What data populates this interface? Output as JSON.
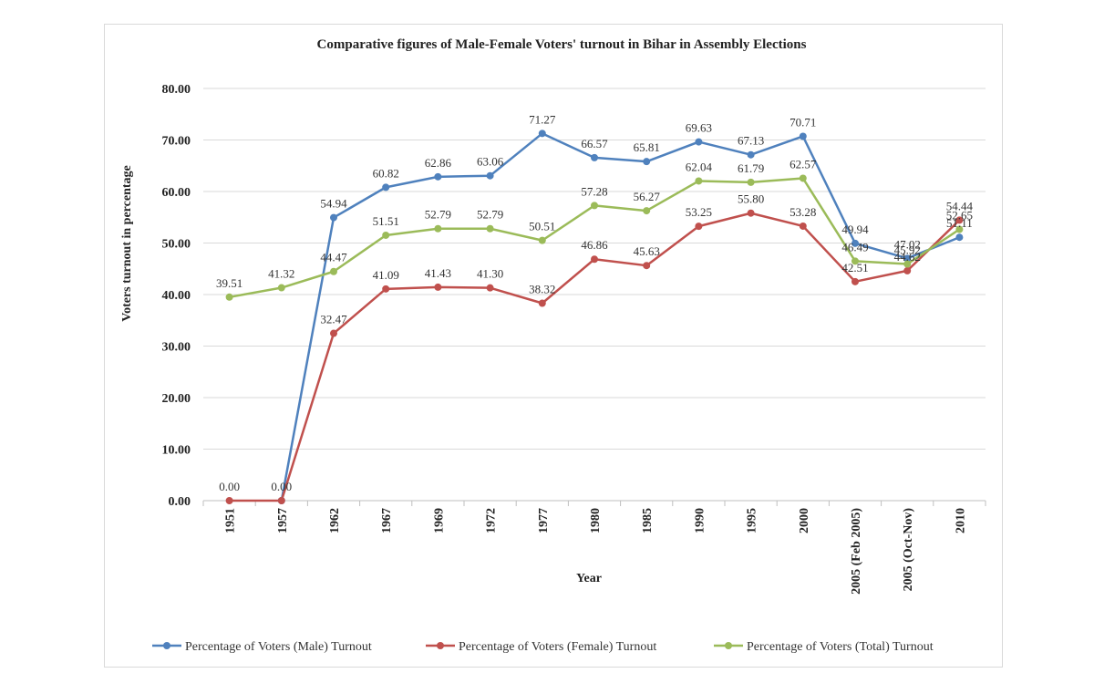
{
  "chart_data": {
    "type": "line",
    "title": "Comparative figures of Male-Female Voters' turnout in Bihar in Assembly Elections",
    "xlabel": "Year",
    "ylabel": "Voters turnout  in percentage",
    "ylim": [
      0,
      80
    ],
    "yticks": [
      "0.00",
      "10.00",
      "20.00",
      "30.00",
      "40.00",
      "50.00",
      "60.00",
      "70.00",
      "80.00"
    ],
    "grid": true,
    "legend_position": "bottom",
    "categories": [
      "1951",
      "1957",
      "1962",
      "1967",
      "1969",
      "1972",
      "1977",
      "1980",
      "1985",
      "1990",
      "1995",
      "2000",
      "2005 (Feb 2005)",
      "2005 (Oct-Nov)",
      "2010"
    ],
    "series": [
      {
        "name": "Percentage of Voters (Male) Turnout",
        "color": "#4f81bd",
        "values": [
          null,
          0.0,
          54.94,
          60.82,
          62.86,
          63.06,
          71.27,
          66.57,
          65.81,
          69.63,
          67.13,
          70.71,
          49.94,
          47.02,
          51.11
        ],
        "labels": [
          "",
          "",
          "54.94",
          "60.82",
          "62.86",
          "63.06",
          "71.27",
          "66.57",
          "65.81",
          "69.63",
          "67.13",
          "70.71",
          "49.94",
          "47.02",
          "51.11"
        ]
      },
      {
        "name": "Percentage of Voters (Female) Turnout",
        "color": "#c0504d",
        "values": [
          0.0,
          0.0,
          32.47,
          41.09,
          41.43,
          41.3,
          38.32,
          46.86,
          45.63,
          53.25,
          55.8,
          53.28,
          42.51,
          44.62,
          54.44
        ],
        "labels": [
          "0.00",
          "0.00",
          "32.47",
          "41.09",
          "41.43",
          "41.30",
          "38.32",
          "46.86",
          "45.63",
          "53.25",
          "55.80",
          "53.28",
          "42.51",
          "44.62",
          "54.44"
        ]
      },
      {
        "name": "Percentage of Voters (Total) Turnout",
        "color": "#9bbb59",
        "values": [
          39.51,
          41.32,
          44.47,
          51.51,
          52.79,
          52.79,
          50.51,
          57.28,
          56.27,
          62.04,
          61.79,
          62.57,
          46.49,
          45.92,
          52.65
        ],
        "labels": [
          "39.51",
          "41.32",
          "44.47",
          "51.51",
          "52.79",
          "52.79",
          "50.51",
          "57.28",
          "56.27",
          "62.04",
          "61.79",
          "62.57",
          "46.49",
          "45.92",
          "52.65"
        ]
      }
    ]
  }
}
